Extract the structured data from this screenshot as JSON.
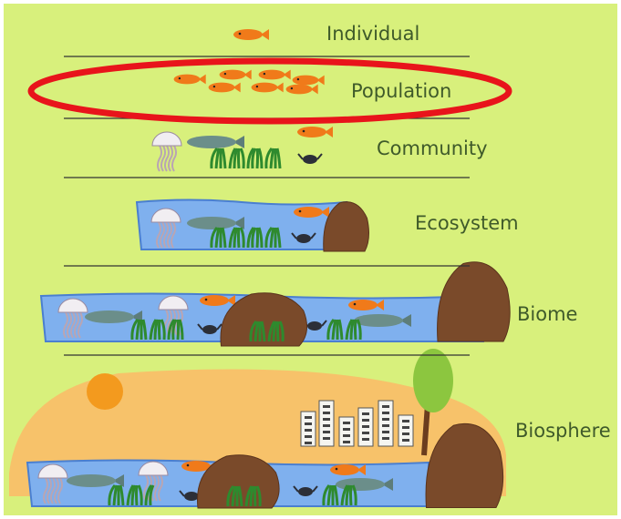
{
  "levels": [
    {
      "label": "Individual"
    },
    {
      "label": "Population"
    },
    {
      "label": "Community"
    },
    {
      "label": "Ecosystem"
    },
    {
      "label": "Biome"
    },
    {
      "label": "Biosphere"
    }
  ]
}
